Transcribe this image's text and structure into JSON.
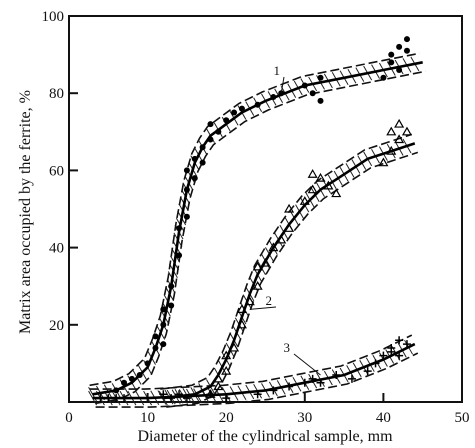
{
  "chart_data": {
    "type": "scatter",
    "title": "",
    "xlabel": "Diameter of the cylindrical sample, mm",
    "ylabel": "Matrix area occupied by the ferrite, %",
    "xlim": [
      0,
      50
    ],
    "ylim": [
      0,
      100
    ],
    "x_ticks": [
      "0",
      "10",
      "20",
      "30",
      "40",
      "50"
    ],
    "y_ticks": [
      "20",
      "40",
      "60",
      "80",
      "100"
    ],
    "grid": false,
    "series": [
      {
        "name": "1",
        "marker": "circle",
        "curve": [
          [
            3,
            2
          ],
          [
            6,
            3
          ],
          [
            8,
            5
          ],
          [
            10,
            9
          ],
          [
            11,
            14
          ],
          [
            12,
            20
          ],
          [
            13,
            30
          ],
          [
            14,
            44
          ],
          [
            15,
            55
          ],
          [
            16,
            62
          ],
          [
            17,
            66
          ],
          [
            18,
            69
          ],
          [
            20,
            72
          ],
          [
            22,
            75
          ],
          [
            25,
            78
          ],
          [
            30,
            82
          ],
          [
            35,
            84
          ],
          [
            40,
            86
          ],
          [
            45,
            88
          ]
        ],
        "points": [
          [
            6,
            3
          ],
          [
            7,
            5
          ],
          [
            8,
            6
          ],
          [
            9,
            7
          ],
          [
            10,
            10
          ],
          [
            11,
            14
          ],
          [
            11,
            17
          ],
          [
            12,
            15
          ],
          [
            12,
            20
          ],
          [
            12,
            24
          ],
          [
            13,
            25
          ],
          [
            13,
            30
          ],
          [
            14,
            38
          ],
          [
            14,
            45
          ],
          [
            15,
            48
          ],
          [
            15,
            55
          ],
          [
            15,
            60
          ],
          [
            16,
            58
          ],
          [
            16,
            63
          ],
          [
            17,
            62
          ],
          [
            17,
            66
          ],
          [
            18,
            68
          ],
          [
            18,
            72
          ],
          [
            19,
            70
          ],
          [
            20,
            73
          ],
          [
            21,
            75
          ],
          [
            22,
            76
          ],
          [
            24,
            77
          ],
          [
            26,
            79
          ],
          [
            27,
            80
          ],
          [
            30,
            82
          ],
          [
            31,
            80
          ],
          [
            32,
            84
          ],
          [
            32,
            78
          ],
          [
            40,
            84
          ],
          [
            41,
            88
          ],
          [
            41,
            90
          ],
          [
            42,
            92
          ],
          [
            42,
            86
          ],
          [
            43,
            94
          ],
          [
            43,
            91
          ]
        ]
      },
      {
        "name": "2",
        "marker": "triangle",
        "curve": [
          [
            12,
            1
          ],
          [
            16,
            2
          ],
          [
            18,
            4
          ],
          [
            19,
            7
          ],
          [
            20,
            11
          ],
          [
            21,
            16
          ],
          [
            22,
            22
          ],
          [
            23,
            28
          ],
          [
            24,
            33
          ],
          [
            26,
            40
          ],
          [
            28,
            46
          ],
          [
            30,
            51
          ],
          [
            32,
            55
          ],
          [
            35,
            59
          ],
          [
            38,
            63
          ],
          [
            41,
            65
          ],
          [
            44,
            67
          ]
        ],
        "points": [
          [
            18,
            2
          ],
          [
            19,
            4
          ],
          [
            19,
            6
          ],
          [
            20,
            8
          ],
          [
            20,
            12
          ],
          [
            21,
            14
          ],
          [
            22,
            20
          ],
          [
            22,
            24
          ],
          [
            23,
            26
          ],
          [
            24,
            30
          ],
          [
            24,
            35
          ],
          [
            25,
            36
          ],
          [
            26,
            40
          ],
          [
            27,
            42
          ],
          [
            28,
            45
          ],
          [
            28,
            50
          ],
          [
            30,
            52
          ],
          [
            31,
            55
          ],
          [
            31,
            59
          ],
          [
            32,
            58
          ],
          [
            33,
            56
          ],
          [
            34,
            54
          ],
          [
            40,
            62
          ],
          [
            41,
            65
          ],
          [
            41,
            70
          ],
          [
            42,
            68
          ],
          [
            42,
            72
          ],
          [
            43,
            70
          ]
        ]
      },
      {
        "name": "3",
        "marker": "plus",
        "curve": [
          [
            3,
            1
          ],
          [
            10,
            1
          ],
          [
            20,
            2
          ],
          [
            25,
            3
          ],
          [
            30,
            5
          ],
          [
            35,
            7
          ],
          [
            40,
            11
          ],
          [
            44,
            15
          ]
        ],
        "points": [
          [
            4,
            1
          ],
          [
            5,
            1
          ],
          [
            6,
            1
          ],
          [
            7,
            1
          ],
          [
            12,
            2
          ],
          [
            13,
            1
          ],
          [
            14,
            2
          ],
          [
            15,
            1
          ],
          [
            18,
            2
          ],
          [
            20,
            1
          ],
          [
            24,
            2
          ],
          [
            26,
            3
          ],
          [
            28,
            4
          ],
          [
            30,
            5
          ],
          [
            31,
            6
          ],
          [
            32,
            5
          ],
          [
            34,
            7
          ],
          [
            36,
            6
          ],
          [
            38,
            8
          ],
          [
            39,
            10
          ],
          [
            40,
            12
          ],
          [
            41,
            13
          ],
          [
            41,
            14
          ],
          [
            42,
            12
          ],
          [
            42,
            16
          ],
          [
            43,
            15
          ]
        ]
      }
    ]
  }
}
